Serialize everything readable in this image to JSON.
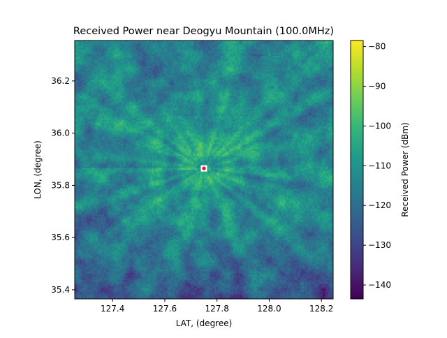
{
  "chart_data": {
    "type": "heatmap",
    "title": "Received Power near Deogyu Mountain (100.0MHz)",
    "xlabel": "LAT, (degree)",
    "ylabel": "LON, (degree)",
    "colorbar_label": "Received Power (dBm)",
    "colormap": "viridis",
    "xlim": [
      127.255,
      128.245
    ],
    "ylim": [
      35.365,
      36.355
    ],
    "clim": [
      -143.5,
      -78.5
    ],
    "xticks": [
      127.4,
      127.6,
      127.8,
      128.0,
      128.2
    ],
    "xtick_labels": [
      "127.4",
      "127.6",
      "127.8",
      "128.0",
      "128.2"
    ],
    "yticks": [
      35.4,
      35.6,
      35.8,
      36.0,
      36.2
    ],
    "ytick_labels": [
      "35.4",
      "35.6",
      "35.8",
      "36.0",
      "36.2"
    ],
    "cticks": [
      -140,
      -130,
      -120,
      -110,
      -100,
      -90,
      -80
    ],
    "ctick_labels": [
      "−140",
      "−130",
      "−120",
      "−110",
      "−100",
      "−90",
      "−80"
    ],
    "transmitter": {
      "lat": 127.75,
      "lon": 35.865,
      "marker_color": "#e8141c"
    },
    "peak_dbm": -79,
    "min_dbm": -143,
    "grid_size": [
      150,
      150
    ]
  }
}
